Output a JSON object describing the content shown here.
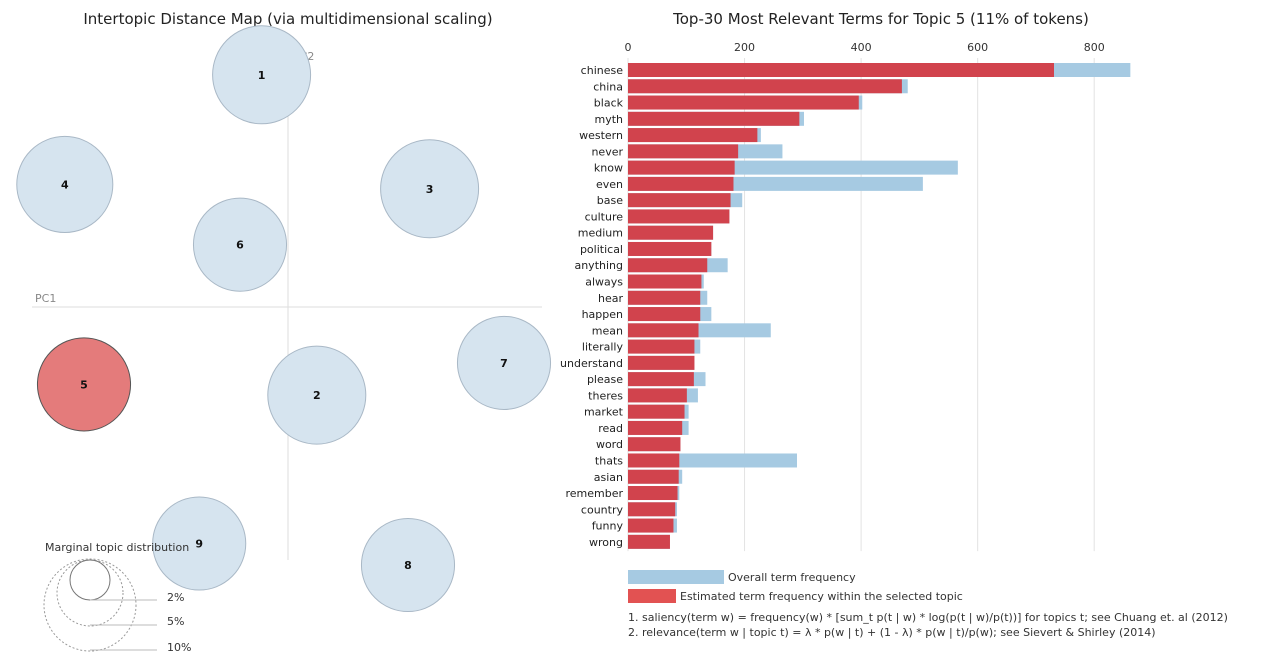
{
  "left_panel": {
    "title": "Intertopic Distance Map (via multidimensional scaling)",
    "pc1_label": "PC1",
    "pc2_label": "PC2",
    "marginal_title": "Marginal topic distribution",
    "marginal_levels": [
      "2%",
      "5%",
      "10%"
    ],
    "selected_topic": "5",
    "colors": {
      "topic_fill": "#d6e4ef",
      "topic_stroke": "#a9b8c6",
      "selected_fill": "#e47b7b",
      "selected_stroke": "#555555"
    }
  },
  "right_panel": {
    "title": "Top-30 Most Relevant Terms for Topic 5 (11% of tokens)",
    "legend": {
      "overall": "Overall term frequency",
      "estimated": "Estimated term frequency within the selected topic"
    },
    "notes": [
      "1. saliency(term w) = frequency(w) * [sum_t p(t | w) * log(p(t | w)/p(t))] for topics t; see Chuang et. al (2012)",
      "2. relevance(term w | topic t) = λ * p(w | t) + (1 - λ) * p(w | t)/p(w); see Sievert & Shirley (2014)"
    ],
    "colors": {
      "overall": "#a6cae2",
      "estimated": "#d1434d",
      "legend_estimated": "#e25252"
    }
  },
  "chart_data": [
    {
      "type": "scatter",
      "title": "Intertopic Distance Map (via multidimensional scaling)",
      "xlabel": "PC1",
      "ylabel": "PC2",
      "points": [
        {
          "label": "1",
          "x": -0.11,
          "y": 1.08,
          "size": 1.0
        },
        {
          "label": "2",
          "x": 0.12,
          "y": -0.41,
          "size": 1.0
        },
        {
          "label": "3",
          "x": 0.59,
          "y": 0.55,
          "size": 1.0
        },
        {
          "label": "4",
          "x": -0.93,
          "y": 0.57,
          "size": 0.98
        },
        {
          "label": "5",
          "x": -0.85,
          "y": -0.36,
          "size": 0.95
        },
        {
          "label": "6",
          "x": -0.2,
          "y": 0.29,
          "size": 0.95
        },
        {
          "label": "7",
          "x": 0.9,
          "y": -0.26,
          "size": 0.95
        },
        {
          "label": "8",
          "x": 0.5,
          "y": -1.2,
          "size": 0.95
        },
        {
          "label": "9",
          "x": -0.37,
          "y": -1.1,
          "size": 0.95
        }
      ]
    },
    {
      "type": "bar",
      "orientation": "horizontal",
      "title": "Top-30 Most Relevant Terms for Topic 5 (11% of tokens)",
      "xlim": [
        0,
        870
      ],
      "xticks": [
        0,
        200,
        400,
        600,
        800
      ],
      "categories": [
        "chinese",
        "china",
        "black",
        "myth",
        "western",
        "never",
        "know",
        "even",
        "base",
        "culture",
        "medium",
        "political",
        "anything",
        "always",
        "hear",
        "happen",
        "mean",
        "literally",
        "understand",
        "please",
        "theres",
        "market",
        "read",
        "word",
        "thats",
        "asian",
        "remember",
        "country",
        "funny",
        "wrong"
      ],
      "series": [
        {
          "name": "Overall term frequency",
          "values": [
            862,
            480,
            402,
            302,
            228,
            265,
            566,
            506,
            196,
            174,
            146,
            143,
            171,
            130,
            136,
            143,
            245,
            124,
            114,
            133,
            120,
            104,
            104,
            90,
            290,
            93,
            88,
            84,
            84,
            72
          ]
        },
        {
          "name": "Estimated term frequency within the selected topic",
          "values": [
            731,
            470,
            396,
            294,
            222,
            189,
            183,
            181,
            176,
            174,
            146,
            143,
            136,
            126,
            124,
            124,
            121,
            114,
            114,
            113,
            101,
            97,
            93,
            90,
            88,
            87,
            85,
            81,
            78,
            72
          ]
        }
      ]
    }
  ]
}
